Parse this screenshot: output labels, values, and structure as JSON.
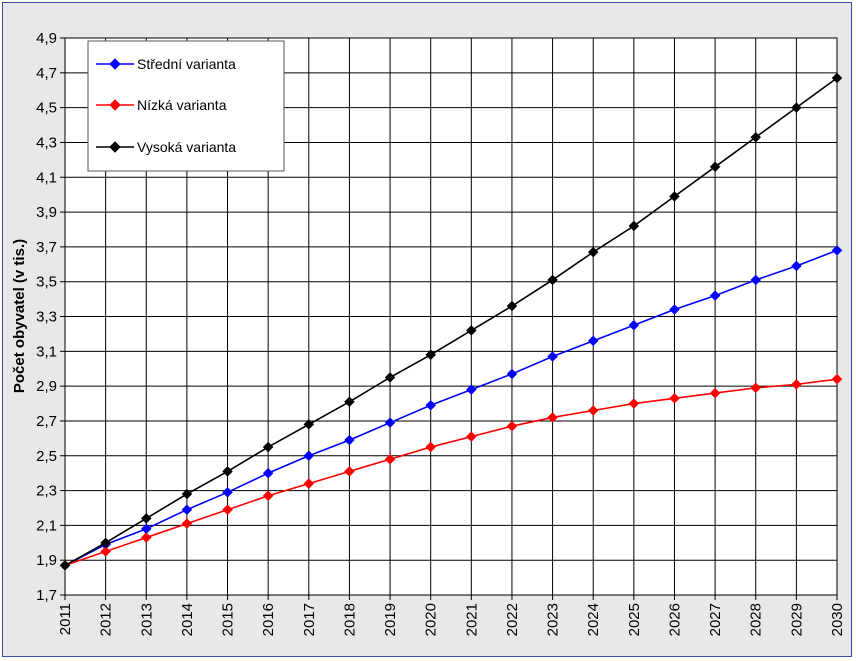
{
  "chart_data": {
    "type": "line",
    "title": "",
    "xlabel": "",
    "ylabel": "Počet obyvatel (v tis.)",
    "ylim": [
      1.7,
      4.9
    ],
    "yticks": [
      "1,7",
      "1,9",
      "2,1",
      "2,3",
      "2,5",
      "2,7",
      "2,9",
      "3,1",
      "3,3",
      "3,5",
      "3,7",
      "3,9",
      "4,1",
      "4,3",
      "4,5",
      "4,7",
      "4,9"
    ],
    "grid": true,
    "legend_position": "top-left",
    "x": [
      2011,
      2012,
      2013,
      2014,
      2015,
      2016,
      2017,
      2018,
      2019,
      2020,
      2021,
      2022,
      2023,
      2024,
      2025,
      2026,
      2027,
      2028,
      2029,
      2030
    ],
    "series": [
      {
        "name": "Střední varianta",
        "color": "#0000ff",
        "values": [
          1.87,
          1.99,
          2.08,
          2.19,
          2.29,
          2.4,
          2.5,
          2.59,
          2.69,
          2.79,
          2.88,
          2.97,
          3.07,
          3.16,
          3.25,
          3.34,
          3.42,
          3.51,
          3.59,
          3.68
        ]
      },
      {
        "name": "Nízká varianta",
        "color": "#ff0000",
        "values": [
          1.87,
          1.95,
          2.03,
          2.11,
          2.19,
          2.27,
          2.34,
          2.41,
          2.48,
          2.55,
          2.61,
          2.67,
          2.72,
          2.76,
          2.8,
          2.83,
          2.86,
          2.89,
          2.91,
          2.94
        ]
      },
      {
        "name": "Vysoká varianta",
        "color": "#000000",
        "values": [
          1.87,
          2.0,
          2.14,
          2.28,
          2.41,
          2.55,
          2.68,
          2.81,
          2.95,
          3.08,
          3.22,
          3.36,
          3.51,
          3.67,
          3.82,
          3.99,
          4.16,
          4.33,
          4.5,
          4.67
        ]
      }
    ]
  }
}
